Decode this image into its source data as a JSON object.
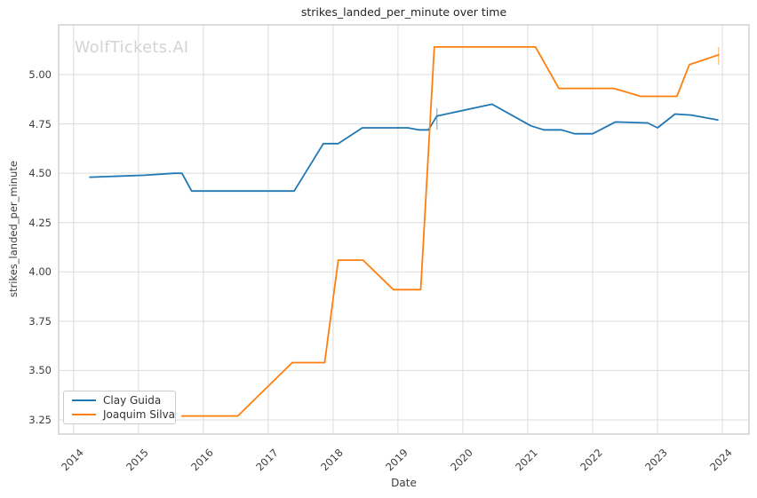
{
  "watermark": {
    "text": "WolfTickets.AI",
    "color": "#d3d3d6"
  },
  "chart_data": {
    "type": "line",
    "title": "strikes_landed_per_minute over time",
    "xlabel": "Date",
    "ylabel": "strikes_landed_per_minute",
    "grid": true,
    "legend_position": "lower left",
    "x_range": [
      2013.77,
      2024.41
    ],
    "y_range": [
      3.178,
      5.252
    ],
    "x_ticks": [
      {
        "value": 2014,
        "label": "2014"
      },
      {
        "value": 2015,
        "label": "2015"
      },
      {
        "value": 2016,
        "label": "2016"
      },
      {
        "value": 2017,
        "label": "2017"
      },
      {
        "value": 2018,
        "label": "2018"
      },
      {
        "value": 2019,
        "label": "2019"
      },
      {
        "value": 2020,
        "label": "2020"
      },
      {
        "value": 2021,
        "label": "2021"
      },
      {
        "value": 2022,
        "label": "2022"
      },
      {
        "value": 2023,
        "label": "2023"
      },
      {
        "value": 2024,
        "label": "2024"
      }
    ],
    "y_ticks": [
      {
        "value": 3.25,
        "label": "3.25"
      },
      {
        "value": 3.5,
        "label": "3.50"
      },
      {
        "value": 3.75,
        "label": "3.75"
      },
      {
        "value": 4.0,
        "label": "4.00"
      },
      {
        "value": 4.25,
        "label": "4.25"
      },
      {
        "value": 4.5,
        "label": "4.50"
      },
      {
        "value": 4.75,
        "label": "4.75"
      },
      {
        "value": 5.0,
        "label": "5.00"
      }
    ],
    "series": [
      {
        "name": "Clay Guida",
        "color": "#1f77b4",
        "points": [
          [
            2014.25,
            4.48
          ],
          [
            2015.1,
            4.49
          ],
          [
            2015.55,
            4.5
          ],
          [
            2015.67,
            4.5
          ],
          [
            2015.82,
            4.41
          ],
          [
            2017.4,
            4.41
          ],
          [
            2017.85,
            4.65
          ],
          [
            2018.08,
            4.65
          ],
          [
            2018.45,
            4.73
          ],
          [
            2019.15,
            4.73
          ],
          [
            2019.32,
            4.72
          ],
          [
            2019.47,
            4.72
          ],
          [
            2019.6,
            4.79
          ],
          [
            2020.45,
            4.85
          ],
          [
            2021.05,
            4.74
          ],
          [
            2021.25,
            4.72
          ],
          [
            2021.52,
            4.72
          ],
          [
            2021.72,
            4.7
          ],
          [
            2022.0,
            4.7
          ],
          [
            2022.35,
            4.76
          ],
          [
            2022.85,
            4.755
          ],
          [
            2023.0,
            4.73
          ],
          [
            2023.27,
            4.8
          ],
          [
            2023.52,
            4.795
          ],
          [
            2023.93,
            4.77
          ]
        ],
        "error_bar": {
          "x": 2019.6,
          "y_low": 4.72,
          "y_high": 4.83
        }
      },
      {
        "name": "Joaquim Silva",
        "color": "#ff7f0e",
        "points": [
          [
            2015.67,
            3.27
          ],
          [
            2016.53,
            3.27
          ],
          [
            2017.37,
            3.54
          ],
          [
            2017.87,
            3.54
          ],
          [
            2018.08,
            4.06
          ],
          [
            2018.46,
            4.06
          ],
          [
            2018.93,
            3.91
          ],
          [
            2019.35,
            3.91
          ],
          [
            2019.56,
            5.14
          ],
          [
            2021.12,
            5.14
          ],
          [
            2021.48,
            4.93
          ],
          [
            2022.33,
            4.93
          ],
          [
            2022.74,
            4.89
          ],
          [
            2023.3,
            4.89
          ],
          [
            2023.49,
            5.05
          ],
          [
            2023.94,
            5.1
          ]
        ],
        "error_bar": {
          "x": 2023.94,
          "y_low": 5.05,
          "y_high": 5.14
        }
      }
    ],
    "colors": {
      "grid": "#dcdcdc",
      "frame": "#c6c6cc",
      "text": "#3d3d3d",
      "title": "#262626"
    }
  }
}
